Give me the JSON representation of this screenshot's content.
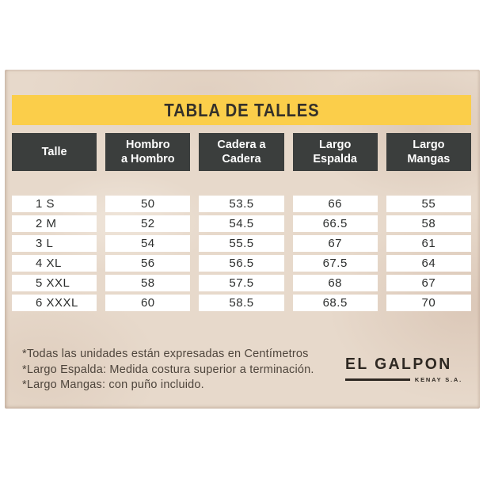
{
  "colors": {
    "page_bg": "#ffffff",
    "panel_bg": "#e7d9cb",
    "title_bar_bg": "#fbce4a",
    "title_fg": "#35312a",
    "header_bg": "#3b3e3d",
    "header_fg": "#ffffff",
    "cell_bg": "#ffffff",
    "cell_fg": "#2c2e2d",
    "note_fg": "#4e453c",
    "logo_fg": "#2e2822"
  },
  "title": {
    "text": "TABLA DE TALLES"
  },
  "table": {
    "headers": [
      "Talle",
      "Hombro\na Hombro",
      "Cadera a\nCadera",
      "Largo\nEspalda",
      "Largo\nMangas"
    ],
    "rows": [
      [
        "1 S",
        "50",
        "53.5",
        "66",
        "55"
      ],
      [
        "2 M",
        "52",
        "54.5",
        "66.5",
        "58"
      ],
      [
        "3 L",
        "54",
        "55.5",
        "67",
        "61"
      ],
      [
        "4 XL",
        "56",
        "56.5",
        "67.5",
        "64"
      ],
      [
        "5 XXL",
        "58",
        "57.5",
        "68",
        "67"
      ],
      [
        "6 XXXL",
        "60",
        "58.5",
        "68.5",
        "70"
      ]
    ]
  },
  "notes": [
    "*Todas las unidades están expresadas en Centímetros",
    "*Largo Espalda: Medida costura superior a terminación.",
    "*Largo Mangas: con puño incluido."
  ],
  "logo": {
    "name": "EL GALPON",
    "subtitle": "KENAY S.A."
  },
  "chart_data": {
    "type": "table",
    "title": "TABLA DE TALLES",
    "columns": [
      "Talle",
      "Hombro a Hombro",
      "Cadera a Cadera",
      "Largo Espalda",
      "Largo Mangas"
    ],
    "units": "Centímetros",
    "rows": [
      {
        "talle": "1 S",
        "hombro_a_hombro": 50,
        "cadera_a_cadera": 53.5,
        "largo_espalda": 66,
        "largo_mangas": 55
      },
      {
        "talle": "2 M",
        "hombro_a_hombro": 52,
        "cadera_a_cadera": 54.5,
        "largo_espalda": 66.5,
        "largo_mangas": 58
      },
      {
        "talle": "3 L",
        "hombro_a_hombro": 54,
        "cadera_a_cadera": 55.5,
        "largo_espalda": 67,
        "largo_mangas": 61
      },
      {
        "talle": "4 XL",
        "hombro_a_hombro": 56,
        "cadera_a_cadera": 56.5,
        "largo_espalda": 67.5,
        "largo_mangas": 64
      },
      {
        "talle": "5 XXL",
        "hombro_a_hombro": 58,
        "cadera_a_cadera": 57.5,
        "largo_espalda": 68,
        "largo_mangas": 67
      },
      {
        "talle": "6 XXXL",
        "hombro_a_hombro": 60,
        "cadera_a_cadera": 58.5,
        "largo_espalda": 68.5,
        "largo_mangas": 70
      }
    ]
  }
}
